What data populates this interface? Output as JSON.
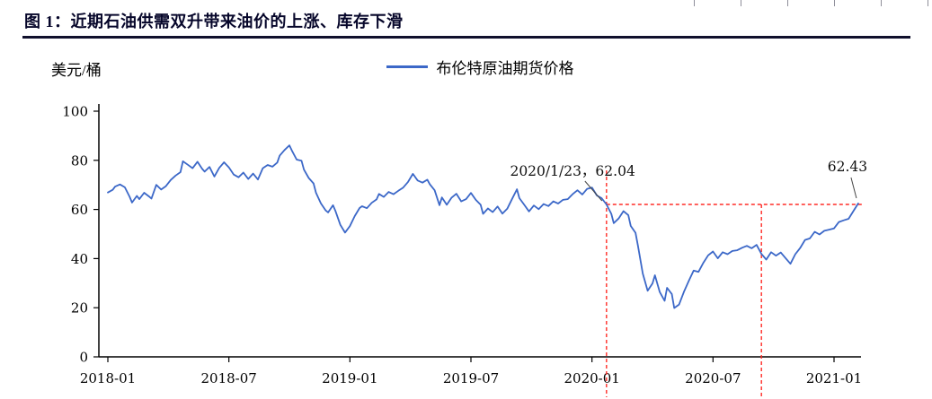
{
  "chart_data": {
    "type": "line",
    "title": "图 1：近期石油供需双升带来油价的上涨、库存下滑",
    "unit_label": "美元/桶",
    "legend": [
      {
        "label": "布伦特原油期货价格",
        "color": "#3c68c8"
      }
    ],
    "legend_position": "top-center",
    "grid": false,
    "xlim": [
      2018.0,
      2021.12
    ],
    "ylim": [
      0,
      100
    ],
    "y_ticks": [
      0,
      20,
      40,
      60,
      80,
      100
    ],
    "x_ticks": [
      {
        "value": 2018.0,
        "label": "2018-01"
      },
      {
        "value": 2018.5,
        "label": "2018-07"
      },
      {
        "value": 2019.0,
        "label": "2019-01"
      },
      {
        "value": 2019.5,
        "label": "2019-07"
      },
      {
        "value": 2020.0,
        "label": "2020-01"
      },
      {
        "value": 2020.5,
        "label": "2020-07"
      },
      {
        "value": 2021.0,
        "label": "2021-01"
      }
    ],
    "annotations": [
      {
        "text": "2020/1/23，62.04",
        "x": 2020.06,
        "y": 62.04
      },
      {
        "text": "62.43",
        "x": 2021.1,
        "y": 62.43
      }
    ],
    "reference_lines": {
      "color": "#ff2b26",
      "style": "dashed",
      "vertical_x": [
        2020.06,
        2020.7
      ],
      "horizontal": [
        {
          "y": 62.04,
          "x_start": 2020.06,
          "x_end": 2021.12
        }
      ]
    },
    "series": [
      {
        "name": "布伦特原油期货价格",
        "color": "#3c68c8",
        "points": [
          [
            2018.0,
            66.9
          ],
          [
            2018.02,
            68.0
          ],
          [
            2018.03,
            69.3
          ],
          [
            2018.05,
            70.2
          ],
          [
            2018.07,
            69.0
          ],
          [
            2018.09,
            65.2
          ],
          [
            2018.1,
            62.8
          ],
          [
            2018.12,
            65.5
          ],
          [
            2018.13,
            64.2
          ],
          [
            2018.15,
            66.8
          ],
          [
            2018.17,
            65.3
          ],
          [
            2018.18,
            64.4
          ],
          [
            2018.2,
            70.0
          ],
          [
            2018.22,
            68.1
          ],
          [
            2018.24,
            69.5
          ],
          [
            2018.26,
            72.0
          ],
          [
            2018.28,
            73.8
          ],
          [
            2018.3,
            75.2
          ],
          [
            2018.31,
            79.6
          ],
          [
            2018.33,
            78.2
          ],
          [
            2018.35,
            76.8
          ],
          [
            2018.37,
            79.4
          ],
          [
            2018.39,
            76.5
          ],
          [
            2018.4,
            75.4
          ],
          [
            2018.42,
            77.3
          ],
          [
            2018.44,
            73.4
          ],
          [
            2018.46,
            76.9
          ],
          [
            2018.48,
            79.2
          ],
          [
            2018.5,
            77.1
          ],
          [
            2018.52,
            74.2
          ],
          [
            2018.54,
            73.1
          ],
          [
            2018.56,
            75.0
          ],
          [
            2018.58,
            72.4
          ],
          [
            2018.6,
            74.6
          ],
          [
            2018.62,
            72.2
          ],
          [
            2018.64,
            76.8
          ],
          [
            2018.66,
            78.1
          ],
          [
            2018.68,
            77.4
          ],
          [
            2018.7,
            79.1
          ],
          [
            2018.71,
            81.9
          ],
          [
            2018.73,
            84.2
          ],
          [
            2018.75,
            86.1
          ],
          [
            2018.76,
            84.0
          ],
          [
            2018.78,
            80.3
          ],
          [
            2018.8,
            79.8
          ],
          [
            2018.81,
            76.2
          ],
          [
            2018.83,
            72.8
          ],
          [
            2018.85,
            70.6
          ],
          [
            2018.86,
            66.8
          ],
          [
            2018.88,
            62.5
          ],
          [
            2018.9,
            59.6
          ],
          [
            2018.91,
            58.8
          ],
          [
            2018.93,
            61.7
          ],
          [
            2018.94,
            59.4
          ],
          [
            2018.96,
            53.8
          ],
          [
            2018.98,
            50.6
          ],
          [
            2019.0,
            53.2
          ],
          [
            2019.02,
            57.3
          ],
          [
            2019.04,
            60.6
          ],
          [
            2019.05,
            61.3
          ],
          [
            2019.07,
            60.5
          ],
          [
            2019.09,
            62.7
          ],
          [
            2019.11,
            64.1
          ],
          [
            2019.12,
            66.3
          ],
          [
            2019.14,
            65.1
          ],
          [
            2019.16,
            67.1
          ],
          [
            2019.18,
            66.2
          ],
          [
            2019.2,
            67.6
          ],
          [
            2019.22,
            68.9
          ],
          [
            2019.24,
            71.2
          ],
          [
            2019.26,
            74.5
          ],
          [
            2019.28,
            71.8
          ],
          [
            2019.3,
            70.9
          ],
          [
            2019.32,
            72.1
          ],
          [
            2019.33,
            70.3
          ],
          [
            2019.35,
            67.8
          ],
          [
            2019.37,
            61.7
          ],
          [
            2019.38,
            64.9
          ],
          [
            2019.4,
            61.9
          ],
          [
            2019.42,
            64.8
          ],
          [
            2019.44,
            66.4
          ],
          [
            2019.46,
            63.3
          ],
          [
            2019.48,
            64.2
          ],
          [
            2019.5,
            66.7
          ],
          [
            2019.52,
            63.9
          ],
          [
            2019.54,
            61.9
          ],
          [
            2019.55,
            58.2
          ],
          [
            2019.57,
            60.4
          ],
          [
            2019.59,
            58.9
          ],
          [
            2019.61,
            61.2
          ],
          [
            2019.63,
            58.3
          ],
          [
            2019.65,
            60.3
          ],
          [
            2019.67,
            64.3
          ],
          [
            2019.69,
            68.2
          ],
          [
            2019.7,
            64.6
          ],
          [
            2019.72,
            61.9
          ],
          [
            2019.74,
            59.2
          ],
          [
            2019.76,
            61.6
          ],
          [
            2019.78,
            60.1
          ],
          [
            2019.8,
            62.2
          ],
          [
            2019.82,
            61.4
          ],
          [
            2019.84,
            63.3
          ],
          [
            2019.86,
            62.4
          ],
          [
            2019.88,
            63.9
          ],
          [
            2019.9,
            64.2
          ],
          [
            2019.92,
            66.2
          ],
          [
            2019.94,
            67.8
          ],
          [
            2019.96,
            66.1
          ],
          [
            2019.98,
            68.4
          ],
          [
            2020.0,
            68.9
          ],
          [
            2020.02,
            65.7
          ],
          [
            2020.04,
            64.6
          ],
          [
            2020.06,
            62.04
          ],
          [
            2020.08,
            58.2
          ],
          [
            2020.09,
            54.4
          ],
          [
            2020.11,
            56.3
          ],
          [
            2020.13,
            59.3
          ],
          [
            2020.15,
            57.7
          ],
          [
            2020.16,
            53.3
          ],
          [
            2020.18,
            50.5
          ],
          [
            2020.19,
            45.3
          ],
          [
            2020.21,
            33.9
          ],
          [
            2020.23,
            26.9
          ],
          [
            2020.25,
            29.9
          ],
          [
            2020.26,
            33.2
          ],
          [
            2020.28,
            26.4
          ],
          [
            2020.3,
            22.8
          ],
          [
            2020.31,
            28.1
          ],
          [
            2020.33,
            25.6
          ],
          [
            2020.34,
            19.9
          ],
          [
            2020.36,
            21.3
          ],
          [
            2020.38,
            26.5
          ],
          [
            2020.4,
            30.9
          ],
          [
            2020.42,
            35.1
          ],
          [
            2020.44,
            34.6
          ],
          [
            2020.46,
            38.3
          ],
          [
            2020.48,
            41.3
          ],
          [
            2020.5,
            42.9
          ],
          [
            2020.52,
            40.1
          ],
          [
            2020.54,
            42.6
          ],
          [
            2020.56,
            41.8
          ],
          [
            2020.58,
            43.1
          ],
          [
            2020.6,
            43.4
          ],
          [
            2020.62,
            44.4
          ],
          [
            2020.64,
            45.2
          ],
          [
            2020.66,
            44.2
          ],
          [
            2020.68,
            45.6
          ],
          [
            2020.7,
            41.9
          ],
          [
            2020.72,
            39.6
          ],
          [
            2020.74,
            42.6
          ],
          [
            2020.76,
            41.2
          ],
          [
            2020.78,
            42.5
          ],
          [
            2020.8,
            40.2
          ],
          [
            2020.82,
            37.9
          ],
          [
            2020.84,
            41.8
          ],
          [
            2020.86,
            44.3
          ],
          [
            2020.88,
            47.6
          ],
          [
            2020.9,
            48.2
          ],
          [
            2020.92,
            50.9
          ],
          [
            2020.94,
            49.8
          ],
          [
            2020.96,
            51.3
          ],
          [
            2020.98,
            51.8
          ],
          [
            2021.0,
            52.3
          ],
          [
            2021.02,
            54.9
          ],
          [
            2021.04,
            55.6
          ],
          [
            2021.06,
            56.2
          ],
          [
            2021.08,
            59.3
          ],
          [
            2021.1,
            62.43
          ]
        ]
      }
    ]
  }
}
